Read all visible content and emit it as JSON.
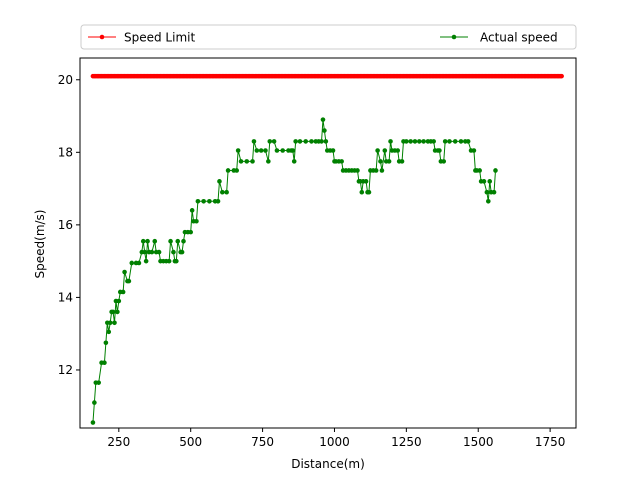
{
  "chart_data": {
    "type": "line",
    "xlabel": "Distance(m)",
    "ylabel": "Speed(m/s)",
    "xlim": [
      115,
      1840
    ],
    "ylim": [
      10.4,
      20.6
    ],
    "xticks": [
      250,
      500,
      750,
      1000,
      1250,
      1500,
      1750
    ],
    "xtick_labels": [
      "250",
      "500",
      "750",
      "1000",
      "1250",
      "1500",
      "1750"
    ],
    "yticks": [
      12,
      14,
      16,
      18,
      20
    ],
    "ytick_labels": [
      "12",
      "14",
      "16",
      "18",
      "20"
    ],
    "grid": false,
    "legend": {
      "placement": "top, above plot",
      "ncol": 2
    },
    "series": [
      {
        "name": "Speed Limit",
        "color": "#ff0000",
        "marker": "circle",
        "constant": {
          "x_start": 160,
          "x_end": 1790,
          "y": 20.1
        }
      },
      {
        "name": "Actual speed",
        "color": "#008000",
        "marker": "circle",
        "points": [
          [
            160,
            10.55
          ],
          [
            165,
            11.1
          ],
          [
            170,
            11.65
          ],
          [
            180,
            11.65
          ],
          [
            190,
            12.2
          ],
          [
            200,
            12.2
          ],
          [
            205,
            12.75
          ],
          [
            210,
            13.3
          ],
          [
            215,
            13.05
          ],
          [
            220,
            13.3
          ],
          [
            225,
            13.6
          ],
          [
            230,
            13.6
          ],
          [
            235,
            13.3
          ],
          [
            240,
            13.9
          ],
          [
            245,
            13.6
          ],
          [
            250,
            13.9
          ],
          [
            255,
            14.15
          ],
          [
            265,
            14.15
          ],
          [
            270,
            14.7
          ],
          [
            280,
            14.45
          ],
          [
            285,
            14.45
          ],
          [
            295,
            14.95
          ],
          [
            310,
            14.95
          ],
          [
            320,
            14.95
          ],
          [
            330,
            15.25
          ],
          [
            335,
            15.55
          ],
          [
            340,
            15.25
          ],
          [
            345,
            15.0
          ],
          [
            350,
            15.55
          ],
          [
            355,
            15.25
          ],
          [
            365,
            15.25
          ],
          [
            375,
            15.55
          ],
          [
            380,
            15.25
          ],
          [
            390,
            15.25
          ],
          [
            395,
            15.0
          ],
          [
            405,
            15.0
          ],
          [
            415,
            15.0
          ],
          [
            425,
            15.0
          ],
          [
            430,
            15.55
          ],
          [
            440,
            15.25
          ],
          [
            445,
            15.0
          ],
          [
            450,
            15.0
          ],
          [
            455,
            15.55
          ],
          [
            465,
            15.25
          ],
          [
            470,
            15.25
          ],
          [
            475,
            15.55
          ],
          [
            480,
            15.8
          ],
          [
            490,
            15.8
          ],
          [
            500,
            15.8
          ],
          [
            505,
            16.4
          ],
          [
            510,
            16.1
          ],
          [
            520,
            16.1
          ],
          [
            525,
            16.65
          ],
          [
            545,
            16.65
          ],
          [
            565,
            16.65
          ],
          [
            585,
            16.65
          ],
          [
            595,
            16.65
          ],
          [
            600,
            17.2
          ],
          [
            610,
            16.9
          ],
          [
            625,
            16.9
          ],
          [
            630,
            17.5
          ],
          [
            650,
            17.5
          ],
          [
            660,
            17.5
          ],
          [
            665,
            18.05
          ],
          [
            675,
            17.75
          ],
          [
            695,
            17.75
          ],
          [
            715,
            17.75
          ],
          [
            720,
            18.3
          ],
          [
            730,
            18.05
          ],
          [
            745,
            18.05
          ],
          [
            760,
            18.05
          ],
          [
            770,
            17.75
          ],
          [
            775,
            18.3
          ],
          [
            790,
            18.3
          ],
          [
            800,
            18.05
          ],
          [
            820,
            18.05
          ],
          [
            840,
            18.05
          ],
          [
            850,
            18.05
          ],
          [
            855,
            18.05
          ],
          [
            860,
            17.75
          ],
          [
            865,
            18.3
          ],
          [
            880,
            18.3
          ],
          [
            900,
            18.3
          ],
          [
            920,
            18.3
          ],
          [
            935,
            18.3
          ],
          [
            945,
            18.3
          ],
          [
            955,
            18.3
          ],
          [
            960,
            18.9
          ],
          [
            965,
            18.6
          ],
          [
            970,
            18.3
          ],
          [
            975,
            18.05
          ],
          [
            985,
            18.05
          ],
          [
            995,
            18.05
          ],
          [
            1000,
            17.75
          ],
          [
            1005,
            17.75
          ],
          [
            1015,
            17.75
          ],
          [
            1025,
            17.75
          ],
          [
            1030,
            17.5
          ],
          [
            1040,
            17.5
          ],
          [
            1050,
            17.5
          ],
          [
            1060,
            17.5
          ],
          [
            1070,
            17.5
          ],
          [
            1080,
            17.5
          ],
          [
            1085,
            17.2
          ],
          [
            1090,
            17.2
          ],
          [
            1095,
            16.9
          ],
          [
            1100,
            17.2
          ],
          [
            1110,
            17.2
          ],
          [
            1115,
            16.9
          ],
          [
            1120,
            16.9
          ],
          [
            1125,
            17.5
          ],
          [
            1135,
            17.5
          ],
          [
            1145,
            17.5
          ],
          [
            1150,
            18.05
          ],
          [
            1160,
            17.75
          ],
          [
            1165,
            17.5
          ],
          [
            1175,
            18.05
          ],
          [
            1180,
            17.75
          ],
          [
            1190,
            17.75
          ],
          [
            1195,
            18.3
          ],
          [
            1200,
            18.05
          ],
          [
            1210,
            18.05
          ],
          [
            1220,
            18.05
          ],
          [
            1225,
            17.75
          ],
          [
            1235,
            17.75
          ],
          [
            1240,
            18.3
          ],
          [
            1250,
            18.3
          ],
          [
            1265,
            18.3
          ],
          [
            1280,
            18.3
          ],
          [
            1295,
            18.3
          ],
          [
            1310,
            18.3
          ],
          [
            1325,
            18.3
          ],
          [
            1335,
            18.3
          ],
          [
            1345,
            18.3
          ],
          [
            1350,
            18.05
          ],
          [
            1360,
            18.05
          ],
          [
            1365,
            18.05
          ],
          [
            1370,
            17.75
          ],
          [
            1380,
            17.75
          ],
          [
            1385,
            18.3
          ],
          [
            1400,
            18.3
          ],
          [
            1420,
            18.3
          ],
          [
            1440,
            18.3
          ],
          [
            1455,
            18.3
          ],
          [
            1465,
            18.3
          ],
          [
            1475,
            18.05
          ],
          [
            1485,
            18.05
          ],
          [
            1490,
            17.5
          ],
          [
            1495,
            17.5
          ],
          [
            1505,
            17.5
          ],
          [
            1510,
            17.2
          ],
          [
            1520,
            17.2
          ],
          [
            1530,
            16.9
          ],
          [
            1535,
            16.65
          ],
          [
            1540,
            17.2
          ],
          [
            1545,
            16.9
          ],
          [
            1555,
            16.9
          ],
          [
            1560,
            17.5
          ]
        ]
      }
    ]
  }
}
